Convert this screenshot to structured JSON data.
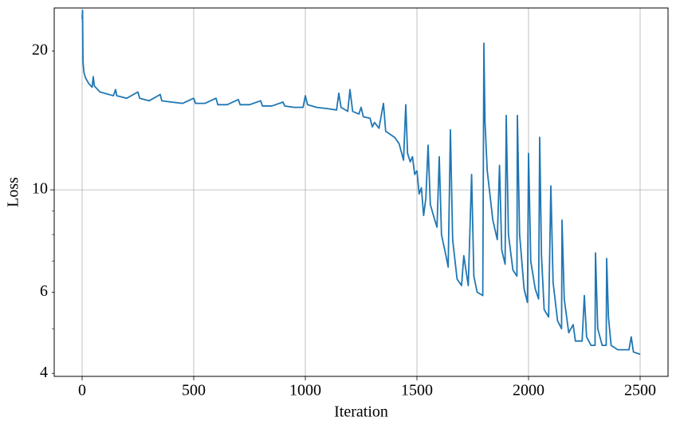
{
  "chart_data": {
    "type": "line",
    "x_label": "Iteration",
    "y_label": "Loss",
    "log_y": true,
    "grid": true,
    "xlim": [
      -125,
      2625
    ],
    "ylim": [
      3.94,
      24.8
    ],
    "xticks": [
      0,
      500,
      1000,
      1500,
      2000,
      2500
    ],
    "yticks": [
      4,
      6,
      10,
      20
    ],
    "yminorticks": [
      5,
      7,
      8,
      9
    ],
    "series": [
      {
        "color": "#1f77b4",
        "x": [
          0,
          2,
          4,
          8,
          15,
          30,
          45,
          50,
          55,
          80,
          140,
          150,
          155,
          200,
          250,
          258,
          300,
          350,
          357,
          400,
          450,
          500,
          508,
          550,
          600,
          608,
          650,
          700,
          708,
          750,
          800,
          808,
          850,
          900,
          908,
          950,
          990,
          1000,
          1010,
          1050,
          1100,
          1140,
          1150,
          1160,
          1190,
          1200,
          1212,
          1240,
          1250,
          1260,
          1290,
          1300,
          1310,
          1330,
          1350,
          1360,
          1400,
          1420,
          1440,
          1450,
          1458,
          1470,
          1480,
          1490,
          1500,
          1510,
          1520,
          1530,
          1540,
          1550,
          1560,
          1580,
          1590,
          1600,
          1610,
          1630,
          1640,
          1650,
          1660,
          1680,
          1700,
          1710,
          1730,
          1745,
          1755,
          1770,
          1795,
          1800,
          1805,
          1815,
          1840,
          1860,
          1870,
          1880,
          1895,
          1900,
          1910,
          1930,
          1948,
          1950,
          1960,
          1980,
          1995,
          2000,
          2010,
          2030,
          2045,
          2050,
          2058,
          2070,
          2090,
          2100,
          2110,
          2130,
          2148,
          2150,
          2160,
          2180,
          2200,
          2210,
          2240,
          2250,
          2260,
          2280,
          2298,
          2300,
          2310,
          2330,
          2348,
          2350,
          2358,
          2370,
          2400,
          2430,
          2450,
          2460,
          2470,
          2500
        ],
        "values": [
          23.5,
          24.5,
          19,
          18,
          17.5,
          17,
          16.7,
          17.6,
          16.8,
          16.3,
          16,
          16.5,
          16,
          15.8,
          16.3,
          15.8,
          15.6,
          16.1,
          15.6,
          15.5,
          15.4,
          15.8,
          15.4,
          15.4,
          15.8,
          15.3,
          15.3,
          15.7,
          15.3,
          15.3,
          15.6,
          15.2,
          15.2,
          15.5,
          15.2,
          15.1,
          15.1,
          16,
          15.3,
          15.1,
          15,
          14.9,
          16.2,
          15.1,
          14.8,
          16.5,
          14.8,
          14.6,
          15.1,
          14.4,
          14.3,
          13.7,
          14,
          13.6,
          15.4,
          13.4,
          13,
          12.6,
          11.6,
          15.3,
          12,
          11.5,
          11.8,
          10.8,
          11,
          9.8,
          10.1,
          8.8,
          9.6,
          12.5,
          9.3,
          8.6,
          8.3,
          11.8,
          8,
          7.2,
          6.8,
          13.5,
          7.8,
          6.4,
          6.2,
          7.2,
          6.2,
          10.8,
          6.5,
          6,
          5.9,
          20.8,
          14,
          11,
          8.6,
          7.8,
          11.3,
          7.4,
          6.9,
          14.5,
          8,
          6.7,
          6.5,
          14.5,
          8,
          6.1,
          5.7,
          12,
          7,
          6.1,
          5.8,
          13,
          7.2,
          5.5,
          5.3,
          10.2,
          6.3,
          5.2,
          5,
          8.6,
          5.8,
          4.9,
          5.1,
          4.7,
          4.7,
          5.9,
          4.8,
          4.6,
          4.6,
          7.3,
          5,
          4.6,
          4.6,
          7.1,
          5.3,
          4.6,
          4.5,
          4.5,
          4.5,
          4.8,
          4.45,
          4.4
        ]
      }
    ]
  }
}
